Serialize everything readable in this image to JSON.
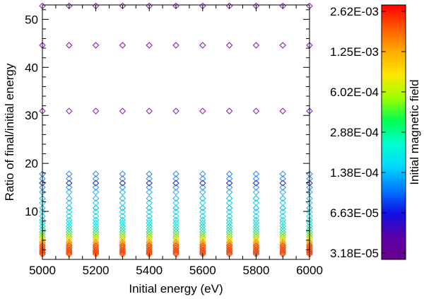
{
  "chart_data": [
    {
      "type": "scatter",
      "xlabel": "Initial energy (eV)",
      "ylabel": "Ratio of final/initial energy",
      "xlim": [
        5000,
        6000
      ],
      "ylim": [
        0,
        53
      ],
      "x_ticks": [
        5000,
        5200,
        5400,
        5600,
        5800,
        6000
      ],
      "x_tick_labels": [
        "5000",
        "5200",
        "5400",
        "5600",
        "5800",
        "6000"
      ],
      "y_ticks": [
        10,
        20,
        30,
        40,
        50
      ],
      "y_tick_labels": [
        "10",
        "20",
        "30",
        "40",
        "50"
      ],
      "marker": "diamond-open",
      "grid": false,
      "x_values": [
        5000,
        5100,
        5200,
        5300,
        5400,
        5500,
        5600,
        5700,
        5800,
        5900,
        6000
      ],
      "points_by_color": [
        {
          "color": "#8c2cb4",
          "y": [
            52.8,
            44.6,
            30.9
          ]
        },
        {
          "color": "#3b2ca8",
          "y": [
            15.9
          ]
        },
        {
          "color": "#3a8ee8",
          "y": [
            17.8,
            16.8,
            15.0
          ]
        },
        {
          "color": "#2eb4ec",
          "y": [
            14.0,
            12.7,
            10.7
          ]
        },
        {
          "color": "#20d6e6",
          "y": [
            11.8,
            9.9,
            9.0,
            8.2,
            7.6
          ]
        },
        {
          "color": "#1ee0b0",
          "y": [
            6.9,
            6.3,
            5.7
          ]
        },
        {
          "color": "#8ade2a",
          "y": [
            5.2,
            4.7
          ]
        },
        {
          "color": "#f0d800",
          "y": [
            4.3,
            3.9
          ]
        },
        {
          "color": "#f08a00",
          "y": [
            3.5,
            3.1
          ]
        },
        {
          "color": "#f04600",
          "y": [
            2.8,
            2.4,
            2.0,
            1.7,
            1.4,
            1.1
          ]
        }
      ]
    },
    {
      "type": "colorbar",
      "label": "Initial magnetic field",
      "tick_labels": [
        "2.62E-03",
        "1.25E-03",
        "6.02E-04",
        "2.88E-04",
        "1.38E-04",
        "6.63E-05",
        "3.18E-05"
      ],
      "scale": "log",
      "colors_top_to_bottom": [
        "#ff0000",
        "#ff5a00",
        "#ffaa00",
        "#ffe600",
        "#a0ff00",
        "#00ff50",
        "#00ffd0",
        "#00d8ff",
        "#0078ff",
        "#1010e6",
        "#5a00a8",
        "#6a0090"
      ]
    }
  ]
}
